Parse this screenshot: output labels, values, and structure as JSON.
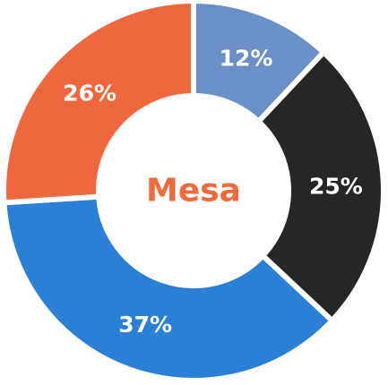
{
  "chart_data": {
    "type": "donut",
    "center_label": "Mesa",
    "categories": [
      null,
      null,
      null,
      null
    ],
    "values": [
      12,
      25,
      37,
      26
    ],
    "value_labels": [
      "12%",
      "25%",
      "37%",
      "26%"
    ],
    "colors": [
      "#6b8fc8",
      "#262626",
      "#2a7fd6",
      "#f0673e"
    ]
  }
}
